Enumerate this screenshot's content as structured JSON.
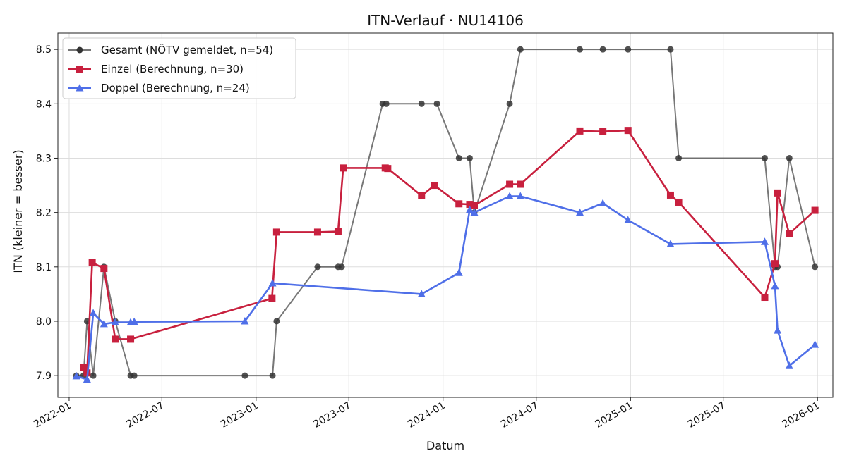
{
  "chart_data": {
    "type": "line",
    "title": "ITN-Verlauf · NU14106",
    "xlabel": "Datum",
    "ylabel": "ITN  (kleiner = besser)",
    "x_axis": "date",
    "xlim": [
      "2021-12-10",
      "2026-01-31"
    ],
    "ylim": [
      7.86,
      8.53
    ],
    "x_ticks": [
      "2022-01-01",
      "2022-07-01",
      "2023-01-01",
      "2023-07-01",
      "2024-01-01",
      "2024-07-01",
      "2025-01-01",
      "2025-07-01",
      "2026-01-01"
    ],
    "x_tick_labels": [
      "2022-01",
      "2022-07",
      "2023-01",
      "2023-07",
      "2024-01",
      "2024-07",
      "2025-01",
      "2025-07",
      "2026-01"
    ],
    "y_ticks": [
      7.9,
      8.0,
      8.1,
      8.2,
      8.3,
      8.4,
      8.5
    ],
    "y_tick_labels": [
      "7.9",
      "8.0",
      "8.1",
      "8.2",
      "8.3",
      "8.4",
      "8.5"
    ],
    "grid": true,
    "legend_position": "top-left",
    "series": [
      {
        "name": "Gesamt (NÖTV gemeldet, n=54)",
        "color": "#555555",
        "marker": "circle",
        "points": [
          [
            "2022-01-15",
            7.9
          ],
          [
            "2022-01-29",
            7.9
          ],
          [
            "2022-02-05",
            8.0
          ],
          [
            "2022-02-17",
            7.9
          ],
          [
            "2022-03-10",
            8.1
          ],
          [
            "2022-04-01",
            8.0
          ],
          [
            "2022-05-01",
            7.9
          ],
          [
            "2022-05-08",
            7.9
          ],
          [
            "2022-12-10",
            7.9
          ],
          [
            "2023-02-02",
            7.9
          ],
          [
            "2023-02-10",
            8.0
          ],
          [
            "2023-05-01",
            8.1
          ],
          [
            "2023-06-10",
            8.1
          ],
          [
            "2023-06-17",
            8.1
          ],
          [
            "2023-09-05",
            8.4
          ],
          [
            "2023-09-12",
            8.4
          ],
          [
            "2023-11-20",
            8.4
          ],
          [
            "2023-12-20",
            8.4
          ],
          [
            "2024-02-01",
            8.3
          ],
          [
            "2024-02-22",
            8.3
          ],
          [
            "2024-03-02",
            8.2
          ],
          [
            "2024-05-10",
            8.4
          ],
          [
            "2024-05-31",
            8.5
          ],
          [
            "2024-09-24",
            8.5
          ],
          [
            "2024-11-08",
            8.5
          ],
          [
            "2024-12-27",
            8.5
          ],
          [
            "2025-03-20",
            8.5
          ],
          [
            "2025-04-05",
            8.3
          ],
          [
            "2025-09-20",
            8.3
          ],
          [
            "2025-10-10",
            8.1
          ],
          [
            "2025-10-15",
            8.1
          ],
          [
            "2025-11-07",
            8.3
          ],
          [
            "2025-12-27",
            8.1
          ]
        ]
      },
      {
        "name": "Einzel (Berechnung, n=30)",
        "color": "#c8203e",
        "marker": "square",
        "points": [
          [
            "2022-01-29",
            7.915
          ],
          [
            "2022-02-05",
            7.905
          ],
          [
            "2022-02-15",
            8.108
          ],
          [
            "2022-03-10",
            8.097
          ],
          [
            "2022-04-01",
            7.967
          ],
          [
            "2022-05-01",
            7.967
          ],
          [
            "2023-02-01",
            8.042
          ],
          [
            "2023-02-10",
            8.164
          ],
          [
            "2023-05-01",
            8.164
          ],
          [
            "2023-06-10",
            8.165
          ],
          [
            "2023-06-20",
            8.282
          ],
          [
            "2023-09-10",
            8.282
          ],
          [
            "2023-09-15",
            8.281
          ],
          [
            "2023-11-20",
            8.231
          ],
          [
            "2023-12-15",
            8.25
          ],
          [
            "2024-02-01",
            8.216
          ],
          [
            "2024-02-22",
            8.215
          ],
          [
            "2024-03-02",
            8.213
          ],
          [
            "2024-05-10",
            8.252
          ],
          [
            "2024-05-31",
            8.252
          ],
          [
            "2024-09-24",
            8.35
          ],
          [
            "2024-11-08",
            8.349
          ],
          [
            "2024-12-27",
            8.351
          ],
          [
            "2025-03-20",
            8.232
          ],
          [
            "2025-04-05",
            8.219
          ],
          [
            "2025-09-20",
            8.044
          ],
          [
            "2025-10-10",
            8.106
          ],
          [
            "2025-10-15",
            8.236
          ],
          [
            "2025-11-07",
            8.161
          ],
          [
            "2025-12-27",
            8.204
          ]
        ]
      },
      {
        "name": "Doppel (Berechnung, n=24)",
        "color": "#4f6fe8",
        "marker": "triangle",
        "points": [
          [
            "2022-01-15",
            7.899
          ],
          [
            "2022-02-05",
            7.893
          ],
          [
            "2022-02-17",
            8.015
          ],
          [
            "2022-03-10",
            7.995
          ],
          [
            "2022-04-01",
            7.998
          ],
          [
            "2022-05-01",
            7.998
          ],
          [
            "2022-05-08",
            7.999
          ],
          [
            "2022-12-10",
            8.0
          ],
          [
            "2023-02-02",
            8.07
          ],
          [
            "2023-11-20",
            8.05
          ],
          [
            "2024-02-01",
            8.089
          ],
          [
            "2024-02-22",
            8.205
          ],
          [
            "2024-03-02",
            8.2
          ],
          [
            "2024-05-10",
            8.23
          ],
          [
            "2024-05-31",
            8.23
          ],
          [
            "2024-09-24",
            8.2
          ],
          [
            "2024-11-08",
            8.217
          ],
          [
            "2024-12-27",
            8.186
          ],
          [
            "2025-03-20",
            8.142
          ],
          [
            "2025-09-20",
            8.146
          ],
          [
            "2025-10-10",
            8.065
          ],
          [
            "2025-10-15",
            7.983
          ],
          [
            "2025-11-07",
            7.918
          ],
          [
            "2025-12-27",
            7.957
          ]
        ]
      }
    ]
  }
}
